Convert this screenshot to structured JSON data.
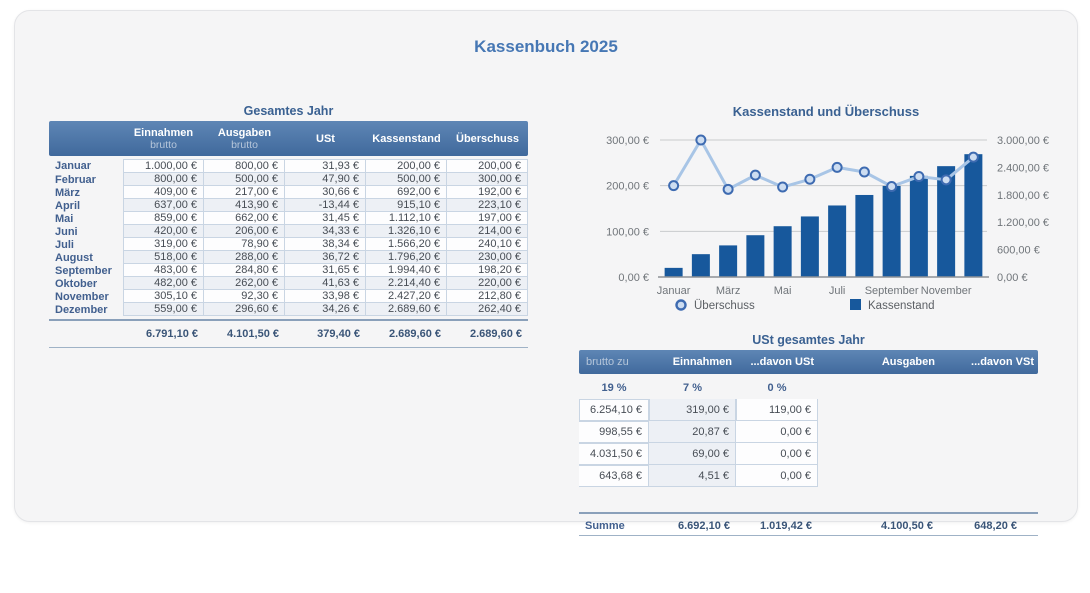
{
  "page": {
    "title": "Kassenbuch 2025"
  },
  "year_table": {
    "title": "Gesamtes Jahr",
    "columns": [
      {
        "label": "",
        "sub": ""
      },
      {
        "label": "Einnahmen",
        "sub": "brutto"
      },
      {
        "label": "Ausgaben",
        "sub": "brutto"
      },
      {
        "label": "USt",
        "sub": ""
      },
      {
        "label": "Kassenstand",
        "sub": ""
      },
      {
        "label": "Überschuss",
        "sub": ""
      }
    ],
    "rows": [
      {
        "month": "Januar",
        "values": [
          "1.000,00 €",
          "800,00 €",
          "31,93 €",
          "200,00 €",
          "200,00 €"
        ]
      },
      {
        "month": "Februar",
        "values": [
          "800,00 €",
          "500,00 €",
          "47,90 €",
          "500,00 €",
          "300,00 €"
        ]
      },
      {
        "month": "März",
        "values": [
          "409,00 €",
          "217,00 €",
          "30,66 €",
          "692,00 €",
          "192,00 €"
        ]
      },
      {
        "month": "April",
        "values": [
          "637,00 €",
          "413,90 €",
          "-13,44 €",
          "915,10 €",
          "223,10 €"
        ]
      },
      {
        "month": "Mai",
        "values": [
          "859,00 €",
          "662,00 €",
          "31,45 €",
          "1.112,10 €",
          "197,00 €"
        ]
      },
      {
        "month": "Juni",
        "values": [
          "420,00 €",
          "206,00 €",
          "34,33 €",
          "1.326,10 €",
          "214,00 €"
        ]
      },
      {
        "month": "Juli",
        "values": [
          "319,00 €",
          "78,90 €",
          "38,34 €",
          "1.566,20 €",
          "240,10 €"
        ]
      },
      {
        "month": "August",
        "values": [
          "518,00 €",
          "288,00 €",
          "36,72 €",
          "1.796,20 €",
          "230,00 €"
        ]
      },
      {
        "month": "September",
        "values": [
          "483,00 €",
          "284,80 €",
          "31,65 €",
          "1.994,40 €",
          "198,20 €"
        ]
      },
      {
        "month": "Oktober",
        "values": [
          "482,00 €",
          "262,00 €",
          "41,63 €",
          "2.214,40 €",
          "220,00 €"
        ]
      },
      {
        "month": "November",
        "values": [
          "305,10 €",
          "92,30 €",
          "33,98 €",
          "2.427,20 €",
          "212,80 €"
        ]
      },
      {
        "month": "Dezember",
        "values": [
          "559,00 €",
          "296,60 €",
          "34,26 €",
          "2.689,60 €",
          "262,40 €"
        ]
      }
    ],
    "total": {
      "label": "",
      "values": [
        "6.791,10 €",
        "4.101,50 €",
        "379,40 €",
        "2.689,60 €",
        "2.689,60 €"
      ]
    }
  },
  "chart_data": {
    "type": "combo bar+line",
    "title": "Kassenstand und Überschuss",
    "categories": [
      "Januar",
      "Februar",
      "März",
      "April",
      "Mai",
      "Juni",
      "Juli",
      "August",
      "September",
      "Oktober",
      "November",
      "Dezember"
    ],
    "x_ticks": [
      {
        "index": 0,
        "label": "Januar"
      },
      {
        "index": 2,
        "label": "März"
      },
      {
        "index": 4,
        "label": "Mai"
      },
      {
        "index": 6,
        "label": "Juli"
      },
      {
        "index": 8,
        "label": "September"
      },
      {
        "index": 10,
        "label": "November"
      }
    ],
    "series": [
      {
        "name": "Überschuss",
        "type": "line",
        "axis": "left",
        "values": [
          200.0,
          300.0,
          192.0,
          223.1,
          197.0,
          214.0,
          240.1,
          230.0,
          198.2,
          220.0,
          212.8,
          262.4
        ]
      },
      {
        "name": "Kassenstand",
        "type": "bar",
        "axis": "right",
        "values": [
          200.0,
          500.0,
          692.0,
          915.1,
          1112.1,
          1326.1,
          1566.2,
          1796.2,
          1994.4,
          2214.4,
          2427.2,
          2689.6
        ]
      }
    ],
    "left_axis": {
      "min": 0,
      "max": 300,
      "step": 100,
      "tick_labels": [
        "0,00 €",
        "100,00 €",
        "200,00 €",
        "300,00 €"
      ]
    },
    "right_axis": {
      "min": 0,
      "max": 3000,
      "step": 600,
      "tick_labels": [
        "0,00 €",
        "600,00 €",
        "1.200,00 €",
        "1.800,00 €",
        "2.400,00 €",
        "3.000,00 €"
      ]
    },
    "legend": [
      {
        "label": "Überschuss",
        "marker": "circle"
      },
      {
        "label": "Kassenstand",
        "marker": "square"
      }
    ],
    "grid": true,
    "legend_position": "bottom"
  },
  "ust_table": {
    "title": "USt gesamtes Jahr",
    "columns": [
      "brutto zu",
      "Einnahmen",
      "...davon USt",
      "Ausgaben",
      "...davon VSt"
    ],
    "rows": [
      {
        "label": "19 %",
        "values": [
          "6.254,10 €",
          "998,55 €",
          "4.031,50 €",
          "643,68 €"
        ]
      },
      {
        "label": "7 %",
        "values": [
          "319,00 €",
          "20,87 €",
          "69,00 €",
          "4,51 €"
        ]
      },
      {
        "label": "0 %",
        "values": [
          "119,00 €",
          "0,00 €",
          "0,00 €",
          "0,00 €"
        ]
      }
    ],
    "total": {
      "label": "Summe",
      "values": [
        "6.692,10 €",
        "1.019,42 €",
        "4.100,50 €",
        "648,20 €"
      ]
    }
  },
  "colors": {
    "accent_title": "#4677b4",
    "section_title": "#3a6192",
    "header_top": "#5e86b5",
    "header_bottom": "#40699c",
    "bar": "#17589c",
    "line": "#a8c5e6",
    "marker_fill": "#cdddf1",
    "marker_stroke": "#3e6bb1",
    "grid_line": "#c9cacc",
    "axis_line": "#8d9196",
    "axis_text": "#70757a",
    "legend_text": "#5c6065",
    "row_alt": "#edf0f5",
    "cell_border": "#c9d5e3"
  }
}
